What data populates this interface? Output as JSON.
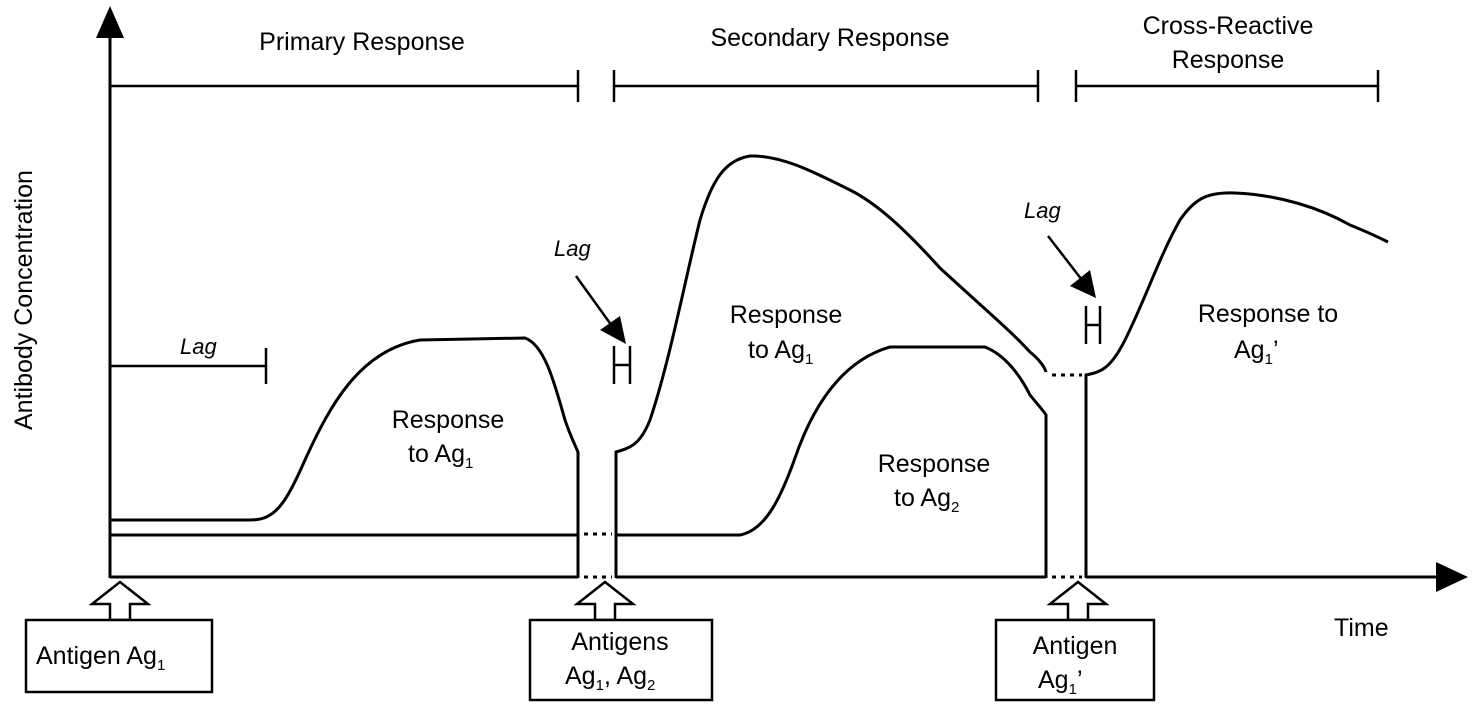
{
  "phases": {
    "primary": "Primary Response",
    "secondary": "Secondary Response",
    "cross_line1": "Cross-Reactive",
    "cross_line2": "Response"
  },
  "axes": {
    "y_label": "Antibody Concentration",
    "x_label": "Time"
  },
  "lag": "Lag",
  "curves": {
    "primary_ag1": {
      "line1": "Response",
      "line2_prefix": "to Ag",
      "sub": "1"
    },
    "secondary_ag1": {
      "line1": "Response",
      "line2_prefix": "to Ag",
      "sub": "1"
    },
    "secondary_ag2": {
      "line1": "Response",
      "line2_prefix": "to Ag",
      "sub": "2"
    },
    "cross_ag1p": {
      "line1": "Response to",
      "line2_prefix": "Ag",
      "sub": "1",
      "suffix": "’"
    }
  },
  "antigen_boxes": {
    "first": {
      "prefix": "Antigen Ag",
      "sub": "1"
    },
    "second": {
      "line1": "Antigens",
      "a": "Ag",
      "a_sub": "1",
      "sep": ", ",
      "b": "Ag",
      "b_sub": "2"
    },
    "third": {
      "line1": "Antigen",
      "prefix": "Ag",
      "sub": "1",
      "suffix": "’"
    }
  }
}
